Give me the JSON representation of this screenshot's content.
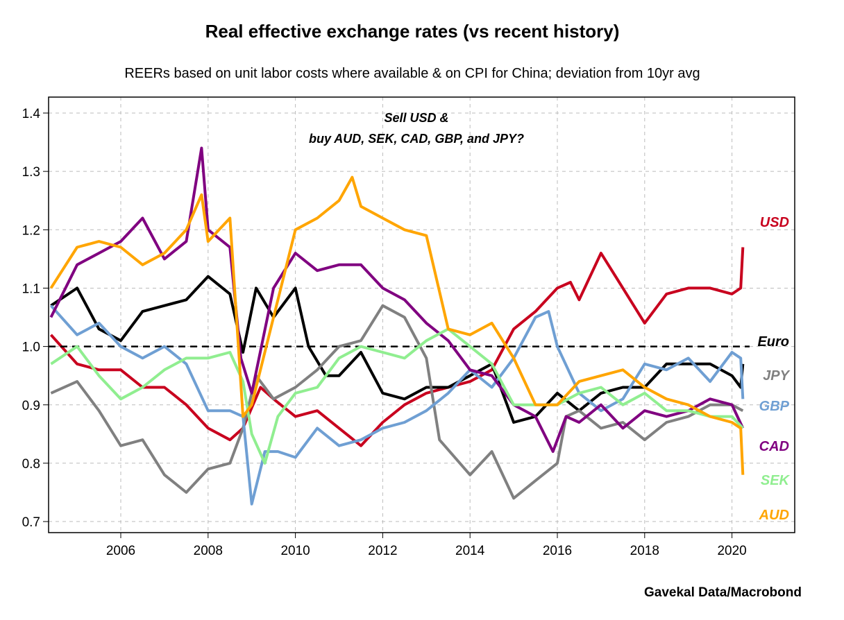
{
  "chart_data": {
    "type": "line",
    "title": "Real effective exchange rates (vs recent history)",
    "subtitle": "REERs based on unit labor costs where available & on CPI for China; deviation from 10yr avg",
    "annotation": [
      "Sell USD &",
      "buy AUD, SEK, CAD, GBP, and JPY?"
    ],
    "source": "Gavekal Data/Macrobond",
    "xlim": [
      2004.35,
      2021.43
    ],
    "ylim": [
      0.68,
      1.43
    ],
    "x_ticks": [
      "2006",
      "2008",
      "2010",
      "2012",
      "2014",
      "2016",
      "2018",
      "2020"
    ],
    "y_ticks": [
      "0.7",
      "0.8",
      "0.9",
      "1.0",
      "1.1",
      "1.2",
      "1.3",
      "1.4"
    ],
    "grid": true,
    "reference_line": {
      "y": 1.0,
      "style": "dashed",
      "color": "#000000"
    },
    "legend": "direct labels at right",
    "series": [
      {
        "name": "USD",
        "color": "#c8001e",
        "points": [
          [
            2004.4,
            1.02
          ],
          [
            2005,
            0.97
          ],
          [
            2005.5,
            0.96
          ],
          [
            2006,
            0.96
          ],
          [
            2006.5,
            0.93
          ],
          [
            2007,
            0.93
          ],
          [
            2007.5,
            0.9
          ],
          [
            2008,
            0.86
          ],
          [
            2008.5,
            0.84
          ],
          [
            2008.8,
            0.86
          ],
          [
            2009.2,
            0.93
          ],
          [
            2009.5,
            0.91
          ],
          [
            2010,
            0.88
          ],
          [
            2010.5,
            0.89
          ],
          [
            2011,
            0.86
          ],
          [
            2011.5,
            0.83
          ],
          [
            2012,
            0.87
          ],
          [
            2012.5,
            0.9
          ],
          [
            2013,
            0.92
          ],
          [
            2013.5,
            0.93
          ],
          [
            2014,
            0.94
          ],
          [
            2014.5,
            0.96
          ],
          [
            2015,
            1.03
          ],
          [
            2015.5,
            1.06
          ],
          [
            2016,
            1.1
          ],
          [
            2016.3,
            1.11
          ],
          [
            2016.5,
            1.08
          ],
          [
            2017,
            1.16
          ],
          [
            2017.5,
            1.1
          ],
          [
            2018,
            1.04
          ],
          [
            2018.5,
            1.09
          ],
          [
            2019,
            1.1
          ],
          [
            2019.5,
            1.1
          ],
          [
            2020,
            1.09
          ],
          [
            2020.2,
            1.1
          ],
          [
            2020.25,
            1.17
          ]
        ]
      },
      {
        "name": "Euro",
        "color": "#000000",
        "points": [
          [
            2004.4,
            1.07
          ],
          [
            2005,
            1.1
          ],
          [
            2005.5,
            1.03
          ],
          [
            2006,
            1.01
          ],
          [
            2006.5,
            1.06
          ],
          [
            2007,
            1.07
          ],
          [
            2007.5,
            1.08
          ],
          [
            2008,
            1.12
          ],
          [
            2008.5,
            1.09
          ],
          [
            2008.8,
            0.99
          ],
          [
            2009.1,
            1.1
          ],
          [
            2009.5,
            1.05
          ],
          [
            2010,
            1.1
          ],
          [
            2010.3,
            1.0
          ],
          [
            2010.7,
            0.95
          ],
          [
            2011,
            0.95
          ],
          [
            2011.5,
            0.99
          ],
          [
            2012,
            0.92
          ],
          [
            2012.5,
            0.91
          ],
          [
            2013,
            0.93
          ],
          [
            2013.5,
            0.93
          ],
          [
            2014,
            0.95
          ],
          [
            2014.5,
            0.97
          ],
          [
            2015,
            0.87
          ],
          [
            2015.5,
            0.88
          ],
          [
            2016,
            0.92
          ],
          [
            2016.5,
            0.89
          ],
          [
            2017,
            0.92
          ],
          [
            2017.5,
            0.93
          ],
          [
            2018,
            0.93
          ],
          [
            2018.5,
            0.97
          ],
          [
            2019,
            0.97
          ],
          [
            2019.5,
            0.97
          ],
          [
            2020,
            0.95
          ],
          [
            2020.2,
            0.93
          ],
          [
            2020.25,
            0.97
          ]
        ]
      },
      {
        "name": "JPY",
        "color": "#808080",
        "points": [
          [
            2004.4,
            0.92
          ],
          [
            2005,
            0.94
          ],
          [
            2005.5,
            0.89
          ],
          [
            2006,
            0.83
          ],
          [
            2006.5,
            0.84
          ],
          [
            2007,
            0.78
          ],
          [
            2007.5,
            0.75
          ],
          [
            2008,
            0.79
          ],
          [
            2008.5,
            0.8
          ],
          [
            2008.8,
            0.86
          ],
          [
            2009.1,
            0.95
          ],
          [
            2009.5,
            0.91
          ],
          [
            2010,
            0.93
          ],
          [
            2010.5,
            0.96
          ],
          [
            2011,
            1.0
          ],
          [
            2011.5,
            1.01
          ],
          [
            2012,
            1.07
          ],
          [
            2012.5,
            1.05
          ],
          [
            2013,
            0.98
          ],
          [
            2013.3,
            0.84
          ],
          [
            2014,
            0.78
          ],
          [
            2014.5,
            0.82
          ],
          [
            2015,
            0.74
          ],
          [
            2015.5,
            0.77
          ],
          [
            2016,
            0.8
          ],
          [
            2016.2,
            0.88
          ],
          [
            2016.5,
            0.89
          ],
          [
            2017,
            0.86
          ],
          [
            2017.5,
            0.87
          ],
          [
            2018,
            0.84
          ],
          [
            2018.5,
            0.87
          ],
          [
            2019,
            0.88
          ],
          [
            2019.5,
            0.9
          ],
          [
            2020,
            0.9
          ],
          [
            2020.25,
            0.89
          ]
        ]
      },
      {
        "name": "GBP",
        "color": "#6f9fd3",
        "points": [
          [
            2004.4,
            1.07
          ],
          [
            2005,
            1.02
          ],
          [
            2005.5,
            1.04
          ],
          [
            2006,
            1.0
          ],
          [
            2006.5,
            0.98
          ],
          [
            2007,
            1.0
          ],
          [
            2007.5,
            0.97
          ],
          [
            2008,
            0.89
          ],
          [
            2008.5,
            0.89
          ],
          [
            2008.8,
            0.88
          ],
          [
            2009,
            0.73
          ],
          [
            2009.3,
            0.82
          ],
          [
            2009.6,
            0.82
          ],
          [
            2010,
            0.81
          ],
          [
            2010.5,
            0.86
          ],
          [
            2011,
            0.83
          ],
          [
            2011.5,
            0.84
          ],
          [
            2012,
            0.86
          ],
          [
            2012.5,
            0.87
          ],
          [
            2013,
            0.89
          ],
          [
            2013.5,
            0.92
          ],
          [
            2014,
            0.96
          ],
          [
            2014.5,
            0.93
          ],
          [
            2015,
            0.98
          ],
          [
            2015.5,
            1.05
          ],
          [
            2015.8,
            1.06
          ],
          [
            2016,
            1.0
          ],
          [
            2016.5,
            0.92
          ],
          [
            2017,
            0.89
          ],
          [
            2017.5,
            0.91
          ],
          [
            2018,
            0.97
          ],
          [
            2018.5,
            0.96
          ],
          [
            2019,
            0.98
          ],
          [
            2019.5,
            0.94
          ],
          [
            2020,
            0.99
          ],
          [
            2020.2,
            0.98
          ],
          [
            2020.25,
            0.91
          ]
        ]
      },
      {
        "name": "CAD",
        "color": "#800080",
        "points": [
          [
            2004.4,
            1.05
          ],
          [
            2005,
            1.14
          ],
          [
            2005.5,
            1.16
          ],
          [
            2006,
            1.18
          ],
          [
            2006.5,
            1.22
          ],
          [
            2007,
            1.15
          ],
          [
            2007.5,
            1.18
          ],
          [
            2007.85,
            1.34
          ],
          [
            2008,
            1.2
          ],
          [
            2008.5,
            1.17
          ],
          [
            2008.75,
            0.98
          ],
          [
            2009,
            0.92
          ],
          [
            2009.5,
            1.1
          ],
          [
            2010,
            1.16
          ],
          [
            2010.5,
            1.13
          ],
          [
            2011,
            1.14
          ],
          [
            2011.5,
            1.14
          ],
          [
            2012,
            1.1
          ],
          [
            2012.5,
            1.08
          ],
          [
            2013,
            1.04
          ],
          [
            2013.5,
            1.01
          ],
          [
            2014,
            0.96
          ],
          [
            2014.5,
            0.95
          ],
          [
            2015,
            0.9
          ],
          [
            2015.5,
            0.88
          ],
          [
            2015.9,
            0.82
          ],
          [
            2016.2,
            0.88
          ],
          [
            2016.5,
            0.87
          ],
          [
            2017,
            0.9
          ],
          [
            2017.5,
            0.86
          ],
          [
            2018,
            0.89
          ],
          [
            2018.5,
            0.88
          ],
          [
            2019,
            0.89
          ],
          [
            2019.5,
            0.91
          ],
          [
            2020,
            0.9
          ],
          [
            2020.25,
            0.86
          ]
        ]
      },
      {
        "name": "SEK",
        "color": "#90ee90",
        "points": [
          [
            2004.4,
            0.97
          ],
          [
            2005,
            1.0
          ],
          [
            2005.5,
            0.95
          ],
          [
            2006,
            0.91
          ],
          [
            2006.5,
            0.93
          ],
          [
            2007,
            0.96
          ],
          [
            2007.5,
            0.98
          ],
          [
            2008,
            0.98
          ],
          [
            2008.5,
            0.99
          ],
          [
            2008.8,
            0.94
          ],
          [
            2009,
            0.85
          ],
          [
            2009.3,
            0.8
          ],
          [
            2009.6,
            0.88
          ],
          [
            2010,
            0.92
          ],
          [
            2010.5,
            0.93
          ],
          [
            2011,
            0.98
          ],
          [
            2011.5,
            1.0
          ],
          [
            2012,
            0.99
          ],
          [
            2012.5,
            0.98
          ],
          [
            2013,
            1.01
          ],
          [
            2013.5,
            1.03
          ],
          [
            2014,
            1.0
          ],
          [
            2014.5,
            0.97
          ],
          [
            2015,
            0.9
          ],
          [
            2015.5,
            0.9
          ],
          [
            2016,
            0.9
          ],
          [
            2016.5,
            0.92
          ],
          [
            2017,
            0.93
          ],
          [
            2017.5,
            0.9
          ],
          [
            2018,
            0.92
          ],
          [
            2018.5,
            0.89
          ],
          [
            2019,
            0.89
          ],
          [
            2019.5,
            0.88
          ],
          [
            2020,
            0.88
          ],
          [
            2020.25,
            0.86
          ]
        ]
      },
      {
        "name": "AUD",
        "color": "#ffa500",
        "points": [
          [
            2004.4,
            1.1
          ],
          [
            2005,
            1.17
          ],
          [
            2005.5,
            1.18
          ],
          [
            2006,
            1.17
          ],
          [
            2006.5,
            1.14
          ],
          [
            2007,
            1.16
          ],
          [
            2007.5,
            1.2
          ],
          [
            2007.85,
            1.26
          ],
          [
            2008,
            1.18
          ],
          [
            2008.5,
            1.22
          ],
          [
            2008.8,
            0.88
          ],
          [
            2009,
            0.9
          ],
          [
            2009.5,
            1.05
          ],
          [
            2010,
            1.2
          ],
          [
            2010.5,
            1.22
          ],
          [
            2011,
            1.25
          ],
          [
            2011.3,
            1.29
          ],
          [
            2011.5,
            1.24
          ],
          [
            2012,
            1.22
          ],
          [
            2012.5,
            1.2
          ],
          [
            2013,
            1.19
          ],
          [
            2013.5,
            1.03
          ],
          [
            2014,
            1.02
          ],
          [
            2014.5,
            1.04
          ],
          [
            2015,
            0.98
          ],
          [
            2015.5,
            0.9
          ],
          [
            2016,
            0.9
          ],
          [
            2016.5,
            0.94
          ],
          [
            2017,
            0.95
          ],
          [
            2017.5,
            0.96
          ],
          [
            2018,
            0.93
          ],
          [
            2018.5,
            0.91
          ],
          [
            2019,
            0.9
          ],
          [
            2019.5,
            0.88
          ],
          [
            2020,
            0.87
          ],
          [
            2020.2,
            0.86
          ],
          [
            2020.25,
            0.78
          ]
        ]
      }
    ]
  }
}
